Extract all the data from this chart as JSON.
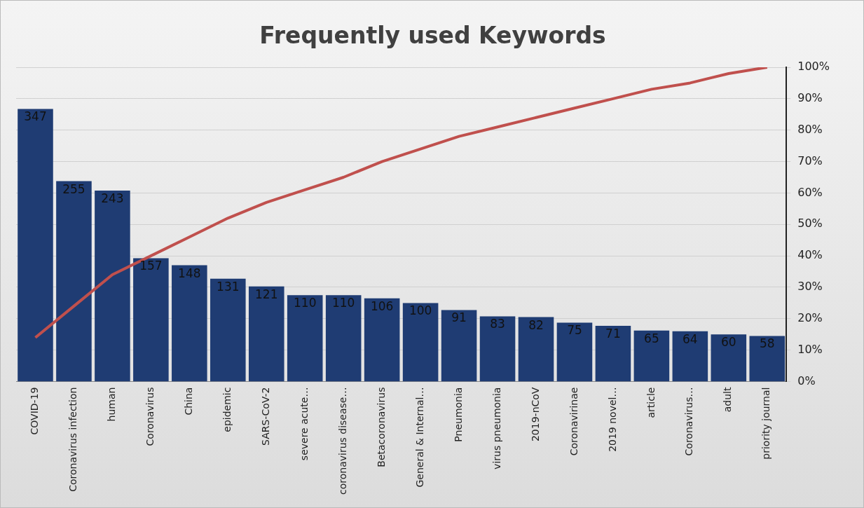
{
  "chart_data": {
    "type": "bar",
    "title": "Frequently used Keywords",
    "categories": [
      "COVID-19",
      "Coronavirus infection",
      "human",
      "Coronavirus",
      "China",
      "epidemic",
      "SARS-CoV-2",
      "severe acute…",
      "coronavirus disease…",
      "Betacoronavirus",
      "General & Internal…",
      "Pneumonia",
      "virus pneumonia",
      "2019-nCoV",
      "Coronavirinae",
      "2019 novel…",
      "article",
      "Coronavirus…",
      "adult",
      "priority journal"
    ],
    "series": [
      {
        "color": "#1f3c73",
        "values": [
          347,
          255,
          243,
          157,
          148,
          131,
          121,
          110,
          110,
          106,
          100,
          91,
          83,
          82,
          75,
          71,
          65,
          64,
          60,
          58
        ],
        "value_labels": [
          "347",
          "255",
          "243",
          "157",
          "148",
          "131",
          "121",
          "110",
          "110",
          "106",
          "100",
          "91",
          "83",
          "82",
          "75",
          "71",
          "65",
          "64",
          "60",
          "58"
        ]
      },
      {
        "type": "line",
        "axis": "y2",
        "color": "#c0504d",
        "marker": "none",
        "values": [
          14,
          24,
          34,
          40,
          46,
          52,
          57,
          61,
          65,
          70,
          74,
          78,
          81,
          84,
          87,
          90,
          93,
          95,
          98,
          100
        ]
      }
    ],
    "y2lim": [
      0,
      100
    ],
    "y2ticks": [
      {
        "value": 0,
        "label": "0%"
      },
      {
        "value": 10,
        "label": "10%"
      },
      {
        "value": 20,
        "label": "20%"
      },
      {
        "value": 30,
        "label": "30%"
      },
      {
        "value": 40,
        "label": "40%"
      },
      {
        "value": 50,
        "label": "50%"
      },
      {
        "value": 60,
        "label": "60%"
      },
      {
        "value": 70,
        "label": "70%"
      },
      {
        "value": 80,
        "label": "80%"
      },
      {
        "value": 90,
        "label": "90%"
      },
      {
        "value": 100,
        "label": "100%"
      }
    ],
    "grid": "y",
    "legend": false
  }
}
